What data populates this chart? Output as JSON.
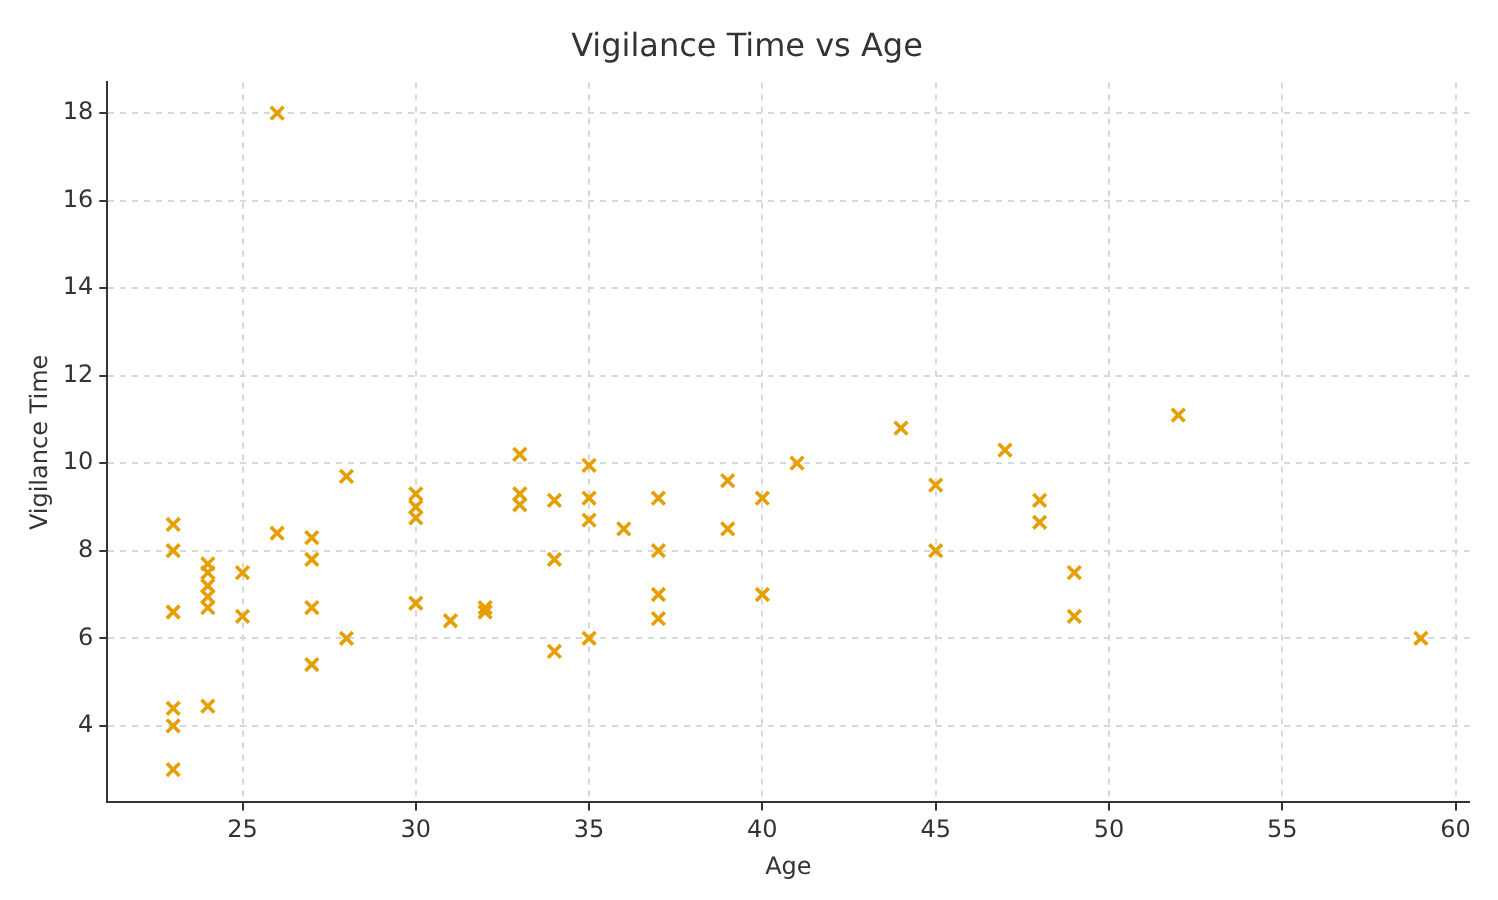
{
  "chart_data": {
    "type": "scatter",
    "title": "Vigilance Time vs Age",
    "xlabel": "Age",
    "ylabel": "Vigilance Time",
    "xlim": [
      21.1,
      60.4
    ],
    "xticks": [
      25,
      30,
      35,
      40,
      45,
      50,
      55,
      60
    ],
    "ylim": [
      2.25,
      18.7
    ],
    "yticks": [
      4,
      6,
      8,
      10,
      12,
      14,
      16,
      18
    ],
    "grid": true,
    "marker": "cross",
    "legend": false,
    "series": [
      {
        "color": "#e69f00",
        "x": [
          23,
          23,
          23,
          23,
          23,
          23,
          24,
          24,
          24,
          24,
          24,
          24,
          25,
          25,
          26,
          26,
          27,
          27,
          27,
          27,
          28,
          28,
          30,
          30,
          30,
          30,
          31,
          32,
          32,
          33,
          33,
          33,
          34,
          34,
          34,
          35,
          35,
          35,
          35,
          36,
          37,
          37,
          37,
          37,
          39,
          39,
          40,
          40,
          41,
          44,
          45,
          45,
          47,
          48,
          48,
          49,
          49,
          52,
          59
        ],
        "values": [
          8.6,
          8.0,
          6.6,
          4.4,
          4.0,
          3.0,
          7.7,
          7.5,
          7.2,
          6.95,
          6.7,
          4.45,
          7.5,
          6.5,
          8.4,
          18.0,
          8.3,
          7.8,
          6.7,
          5.4,
          9.7,
          6.0,
          9.3,
          9.0,
          8.75,
          6.8,
          6.4,
          6.7,
          6.6,
          10.2,
          9.3,
          9.05,
          9.15,
          7.8,
          5.7,
          9.95,
          9.2,
          8.7,
          6.0,
          8.5,
          9.2,
          8.0,
          7.0,
          6.45,
          9.6,
          8.5,
          9.2,
          7.0,
          10.0,
          10.8,
          9.5,
          8.0,
          10.3,
          9.15,
          8.65,
          7.5,
          6.5,
          11.1,
          6.0
        ]
      }
    ]
  }
}
